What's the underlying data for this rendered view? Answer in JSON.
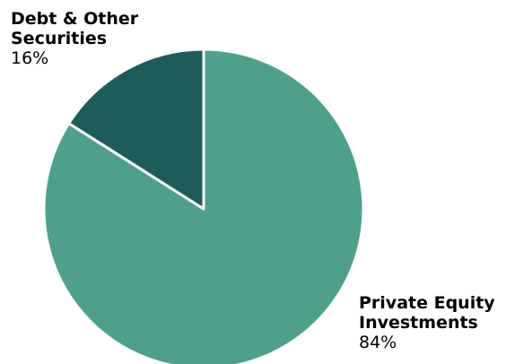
{
  "chart_data": {
    "type": "pie",
    "slices": [
      {
        "label": "Private Equity Investments",
        "value": 84,
        "display": "84%",
        "color": "#4fa08b"
      },
      {
        "label": "Debt & Other Securities",
        "value": 16,
        "display": "16%",
        "color": "#1e5c5c"
      }
    ]
  }
}
